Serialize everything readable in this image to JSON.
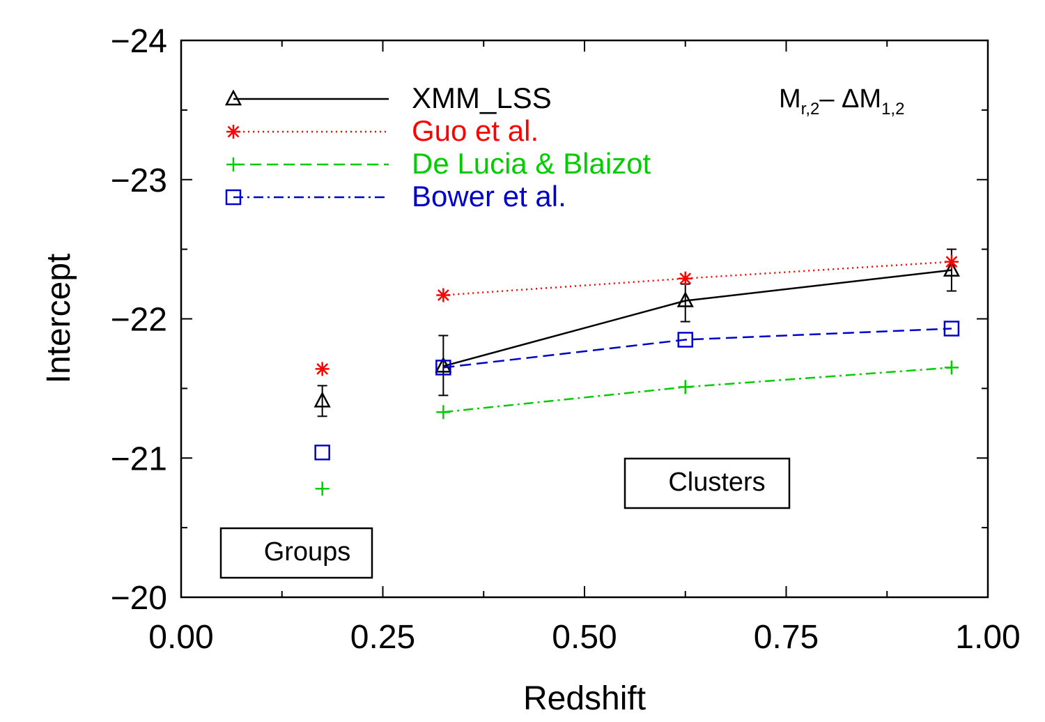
{
  "chart_data": {
    "type": "scatter",
    "title": "",
    "xlabel": "Redshift",
    "ylabel": "Intercept",
    "xlim": [
      0.0,
      1.0
    ],
    "ylim": [
      -20,
      -24
    ],
    "y_axis_inverted": true,
    "xticks": [
      "0.00",
      "0.25",
      "0.50",
      "0.75",
      "1.00"
    ],
    "yticks": [
      "−24",
      "−23",
      "−22",
      "−21",
      "−20"
    ],
    "panel_label": {
      "main": "M",
      "sub1": "r,2",
      "mid": "– ΔM",
      "sub2": "1,2"
    },
    "region_labels": {
      "groups": "Groups",
      "clusters": "Clusters"
    },
    "series": [
      {
        "name": "XMM_LSS",
        "color": "#000000",
        "marker": "triangle",
        "linestyle": "solid",
        "groups_point": {
          "x": 0.175,
          "y": -21.41,
          "err_low": 0.11,
          "err_high": 0.11
        },
        "x": [
          0.325,
          0.625,
          0.955
        ],
        "y": [
          -21.66,
          -22.13,
          -22.35
        ],
        "err_low": [
          0.21,
          0.15,
          0.15
        ],
        "err_high": [
          0.22,
          0.12,
          0.15
        ]
      },
      {
        "name": "Guo et al.",
        "color": "#ff0000",
        "marker": "asterisk",
        "linestyle": "dotted",
        "groups_point": {
          "x": 0.175,
          "y": -21.64
        },
        "x": [
          0.325,
          0.625,
          0.955
        ],
        "y": [
          -22.17,
          -22.29,
          -22.41
        ]
      },
      {
        "name": "De Lucia & Blaizot",
        "color": "#00cc00",
        "marker": "plus",
        "linestyle": "dashdot",
        "groups_point": {
          "x": 0.175,
          "y": -20.78
        },
        "x": [
          0.325,
          0.625,
          0.955
        ],
        "y": [
          -21.33,
          -21.51,
          -21.65
        ]
      },
      {
        "name": "Bower et al.",
        "color": "#0000cc",
        "marker": "square",
        "linestyle": "dashed",
        "groups_point": {
          "x": 0.175,
          "y": -21.04
        },
        "x": [
          0.325,
          0.625,
          0.955
        ],
        "y": [
          -21.65,
          -21.85,
          -21.93
        ]
      }
    ]
  }
}
